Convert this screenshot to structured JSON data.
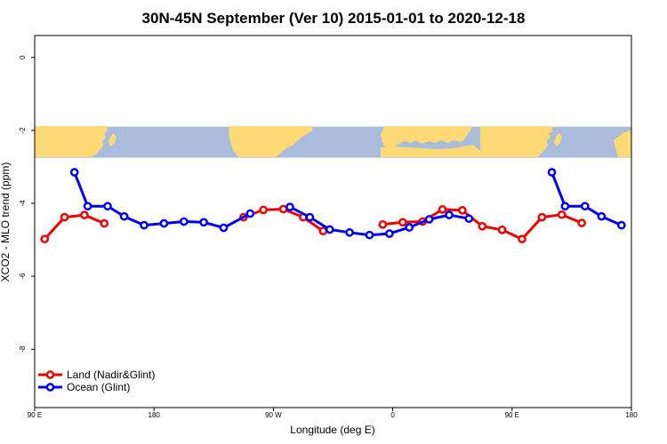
{
  "chart_data": {
    "type": "line",
    "title": "30N-45N September (Ver 10)   2015-01-01 to 2020-12-18",
    "xlabel": "Longitude (deg E)",
    "ylabel": "XCO2 - MLO trend (ppm)",
    "xlim": [
      90,
      540
    ],
    "ylim": [
      -9.6,
      0.6
    ],
    "x_ticks": [
      {
        "value": 90,
        "label": "90 E"
      },
      {
        "value": 180,
        "label": "180"
      },
      {
        "value": 270,
        "label": "90 W"
      },
      {
        "value": 360,
        "label": "0"
      },
      {
        "value": 450,
        "label": "90 E"
      },
      {
        "value": 540,
        "label": "180"
      }
    ],
    "y_ticks": [
      {
        "value": 0,
        "label": "0"
      },
      {
        "value": -2,
        "label": "-2"
      },
      {
        "value": -4,
        "label": "-4"
      },
      {
        "value": -6,
        "label": "-6"
      },
      {
        "value": -8,
        "label": "-8"
      }
    ],
    "map_band": {
      "y_top": -1.9,
      "y_bottom": -2.75,
      "ocean_color": "#a9bcdc",
      "land_color": "#fdda76"
    },
    "legend_position": "bottom-left",
    "series": [
      {
        "name": "Land (Nadir&Glint)",
        "color": "#ee0000",
        "segments": [
          [
            [
              97.5,
              -4.98
            ],
            [
              112.5,
              -4.38
            ],
            [
              127.5,
              -4.32
            ],
            [
              142.5,
              -4.55
            ]
          ],
          [
            [
              247.5,
              -4.38
            ],
            [
              262.5,
              -4.18
            ],
            [
              277.5,
              -4.16
            ],
            [
              292.5,
              -4.38
            ],
            [
              307.5,
              -4.76
            ]
          ],
          [
            [
              352.5,
              -4.58
            ],
            [
              367.5,
              -4.52
            ],
            [
              382.5,
              -4.5
            ],
            [
              397.5,
              -4.17
            ],
            [
              412.5,
              -4.19
            ],
            [
              427.5,
              -4.63
            ],
            [
              442.5,
              -4.73
            ],
            [
              457.5,
              -4.98
            ],
            [
              472.5,
              -4.38
            ],
            [
              487.5,
              -4.31
            ],
            [
              502.5,
              -4.54
            ]
          ]
        ]
      },
      {
        "name": "Ocean (Glint)",
        "color": "#0000ee",
        "segments": [
          [
            [
              120,
              -3.15
            ],
            [
              130,
              -4.08
            ],
            [
              145,
              -4.08
            ],
            [
              157.5,
              -4.36
            ],
            [
              172.5,
              -4.6
            ],
            [
              187.5,
              -4.55
            ],
            [
              202.5,
              -4.5
            ],
            [
              217.5,
              -4.52
            ],
            [
              232.5,
              -4.67
            ],
            [
              252.5,
              -4.28
            ]
          ],
          [
            [
              282.5,
              -4.1
            ],
            [
              297.5,
              -4.38
            ],
            [
              312.5,
              -4.72
            ],
            [
              327.5,
              -4.8
            ],
            [
              342.5,
              -4.87
            ],
            [
              357.5,
              -4.83
            ],
            [
              372.5,
              -4.66
            ],
            [
              387.5,
              -4.44
            ],
            [
              402.5,
              -4.32
            ],
            [
              417.5,
              -4.42
            ]
          ],
          [
            [
              480,
              -3.15
            ],
            [
              490,
              -4.08
            ],
            [
              505,
              -4.08
            ],
            [
              517.5,
              -4.36
            ],
            [
              532.5,
              -4.6
            ]
          ]
        ]
      }
    ]
  }
}
